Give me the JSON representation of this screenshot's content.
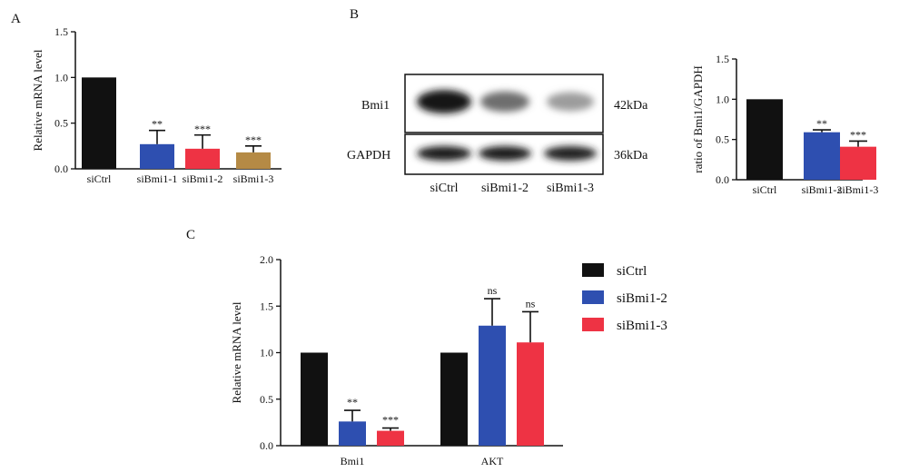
{
  "panels": {
    "a": {
      "letter": "A"
    },
    "b": {
      "letter": "B"
    },
    "c": {
      "letter": "C"
    }
  },
  "colors": {
    "siCtrl": "#111111",
    "siBmi1-1": "#2e4fb0",
    "siBmi1-2": "#ee3344",
    "siBmi1-3": "#b58a45"
  },
  "chart_data": [
    {
      "id": "A",
      "type": "bar",
      "categories": [
        "siCtrl",
        "siBmi1-1",
        "siBmi1-2",
        "siBmi1-3"
      ],
      "values": [
        1.0,
        0.27,
        0.22,
        0.18
      ],
      "errors": [
        0,
        0.15,
        0.15,
        0.07
      ],
      "significance": [
        "",
        "**",
        "***",
        "***"
      ],
      "bar_colors": [
        "#111111",
        "#2e4fb0",
        "#ee3344",
        "#b58a45"
      ],
      "ylabel": "Relative mRNA level",
      "ylim": [
        0,
        1.5
      ],
      "yticks": [
        "0.0",
        "0.5",
        "1.0",
        "1.5"
      ],
      "grid": false
    },
    {
      "id": "B",
      "type": "bar",
      "categories": [
        "siCtrl",
        "siBmi1-2",
        "siBmi1-3"
      ],
      "values": [
        1.0,
        0.59,
        0.41
      ],
      "errors": [
        0,
        0.03,
        0.07
      ],
      "significance": [
        "",
        "**",
        "***"
      ],
      "bar_colors": [
        "#111111",
        "#2e4fb0",
        "#ee3344"
      ],
      "ylabel": "ratio of Bmi1/GAPDH",
      "ylim": [
        0,
        1.5
      ],
      "yticks": [
        "0.0",
        "0.5",
        "1.0",
        "1.5"
      ],
      "grid": false
    },
    {
      "id": "C",
      "type": "bar",
      "categories": [
        "Bmi1",
        "AKT"
      ],
      "series": [
        {
          "name": "siCtrl",
          "values": [
            1.0,
            1.0
          ],
          "errors": [
            0,
            0
          ],
          "significance": [
            "",
            ""
          ],
          "color": "#111111"
        },
        {
          "name": "siBmi1-2",
          "values": [
            0.26,
            1.29
          ],
          "errors": [
            0.12,
            0.29
          ],
          "significance": [
            "**",
            "ns"
          ],
          "color": "#2e4fb0"
        },
        {
          "name": "siBmi1-3",
          "values": [
            0.16,
            1.11
          ],
          "errors": [
            0.03,
            0.33
          ],
          "significance": [
            "***",
            "ns"
          ],
          "color": "#ee3344"
        }
      ],
      "ylabel": "Relative mRNA level",
      "ylim": [
        0,
        2.0
      ],
      "yticks": [
        "0.0",
        "0.5",
        "1.0",
        "1.5",
        "2.0"
      ],
      "legend_position": "right",
      "grid": false
    }
  ],
  "blot": {
    "rows": [
      {
        "label": "Bmi1",
        "size": "42kDa",
        "intensity": [
          1.0,
          0.55,
          0.32
        ]
      },
      {
        "label": "GAPDH",
        "size": "36kDa",
        "intensity": [
          0.95,
          0.95,
          0.92
        ]
      }
    ],
    "lanes": [
      "siCtrl",
      "siBmi1-2",
      "siBmi1-3"
    ]
  }
}
